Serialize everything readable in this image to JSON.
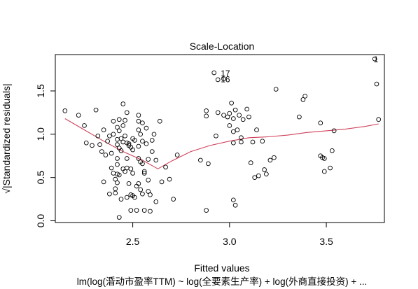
{
  "chart_data": {
    "type": "scatter",
    "title": "Scale-Location",
    "xlabel": "Fitted values",
    "ylabel": "√|Standardized residuals|",
    "subtitle": "lm(log(涽动市盈率TTM) ~ log(全要素生产率) + log(外商直接投资) +  ...",
    "xlim": [
      2.1,
      3.8
    ],
    "ylim": [
      -0.02,
      1.92
    ],
    "x_ticks": [
      2.5,
      3.0,
      3.5
    ],
    "x_tick_labels": [
      "2.5",
      "3.0",
      "3.5"
    ],
    "y_ticks": [
      0.0,
      0.5,
      1.0,
      1.5
    ],
    "y_tick_labels": [
      "0.0",
      "0.5",
      "1.0",
      "1.5"
    ],
    "grid": false,
    "point_color": "#000000",
    "smooth_color": "#d0415a",
    "points": [
      [
        2.15,
        1.27
      ],
      [
        2.22,
        1.22
      ],
      [
        2.25,
        1.1
      ],
      [
        2.26,
        0.9
      ],
      [
        2.29,
        0.87
      ],
      [
        2.31,
        1.28
      ],
      [
        2.32,
        0.98
      ],
      [
        2.33,
        0.88
      ],
      [
        2.34,
        0.8
      ],
      [
        2.35,
        0.45
      ],
      [
        2.35,
        1.05
      ],
      [
        2.36,
        0.76
      ],
      [
        2.37,
        0.92
      ],
      [
        2.38,
        0.98
      ],
      [
        2.38,
        0.31
      ],
      [
        2.39,
        0.78
      ],
      [
        2.39,
        0.61
      ],
      [
        2.4,
        1.15
      ],
      [
        2.4,
        1.0
      ],
      [
        2.4,
        0.55
      ],
      [
        2.41,
        0.48
      ],
      [
        2.41,
        0.37
      ],
      [
        2.41,
        0.32
      ],
      [
        2.42,
        1.08
      ],
      [
        2.42,
        0.94
      ],
      [
        2.42,
        0.88
      ],
      [
        2.42,
        0.72
      ],
      [
        2.42,
        0.65
      ],
      [
        2.42,
        0.54
      ],
      [
        2.42,
        0.44
      ],
      [
        2.43,
        1.17
      ],
      [
        2.43,
        1.04
      ],
      [
        2.43,
        0.84
      ],
      [
        2.43,
        0.53
      ],
      [
        2.43,
        0.04
      ],
      [
        2.44,
        0.95
      ],
      [
        2.44,
        0.81
      ],
      [
        2.44,
        0.25
      ],
      [
        2.45,
        1.35
      ],
      [
        2.45,
        1.1
      ],
      [
        2.45,
        0.91
      ],
      [
        2.45,
        0.6
      ],
      [
        2.46,
        1.16
      ],
      [
        2.46,
        0.98
      ],
      [
        2.46,
        0.57
      ],
      [
        2.47,
        1.25
      ],
      [
        2.47,
        0.9
      ],
      [
        2.47,
        0.72
      ],
      [
        2.47,
        0.61
      ],
      [
        2.47,
        0.27
      ],
      [
        2.48,
        0.89
      ],
      [
        2.48,
        0.87
      ],
      [
        2.48,
        0.43
      ],
      [
        2.49,
        0.85
      ],
      [
        2.49,
        0.6
      ],
      [
        2.49,
        0.3
      ],
      [
        2.49,
        0.12
      ],
      [
        2.5,
        0.95
      ],
      [
        2.5,
        0.82
      ],
      [
        2.5,
        0.55
      ],
      [
        2.5,
        0.29
      ],
      [
        2.51,
        0.93
      ],
      [
        2.51,
        0.27
      ],
      [
        2.52,
        0.12
      ],
      [
        2.52,
        0.4
      ],
      [
        2.53,
        1.22
      ],
      [
        2.53,
        1.15
      ],
      [
        2.53,
        1.05
      ],
      [
        2.53,
        0.86
      ],
      [
        2.53,
        0.72
      ],
      [
        2.53,
        0.43
      ],
      [
        2.54,
        1.0
      ],
      [
        2.54,
        0.68
      ],
      [
        2.54,
        0.36
      ],
      [
        2.55,
        1.13
      ],
      [
        2.55,
        0.92
      ],
      [
        2.55,
        0.66
      ],
      [
        2.55,
        0.31
      ],
      [
        2.56,
        0.57
      ],
      [
        2.56,
        0.55
      ],
      [
        2.56,
        0.12
      ],
      [
        2.57,
        1.07
      ],
      [
        2.57,
        0.89
      ],
      [
        2.58,
        0.71
      ],
      [
        2.58,
        0.47
      ],
      [
        2.58,
        0.34
      ],
      [
        2.59,
        0.3
      ],
      [
        2.59,
        0.11
      ],
      [
        2.6,
        0.93
      ],
      [
        2.6,
        0.8
      ],
      [
        2.61,
        1.0
      ],
      [
        2.62,
        0.7
      ],
      [
        2.62,
        0.22
      ],
      [
        2.64,
        1.15
      ],
      [
        2.65,
        0.45
      ],
      [
        2.67,
        0.62
      ],
      [
        2.69,
        0.48
      ],
      [
        2.71,
        0.25
      ],
      [
        2.73,
        0.76
      ],
      [
        2.85,
        0.7
      ],
      [
        2.88,
        1.27
      ],
      [
        2.88,
        1.21
      ],
      [
        2.89,
        0.66
      ],
      [
        2.88,
        0.12
      ],
      [
        2.92,
        1.71
      ],
      [
        2.94,
        1.63
      ],
      [
        2.93,
        0.98
      ],
      [
        2.94,
        1.25
      ],
      [
        2.97,
        1.64
      ],
      [
        2.97,
        1.22
      ],
      [
        2.99,
        1.2
      ],
      [
        3.0,
        1.24
      ],
      [
        3.0,
        1.1
      ],
      [
        3.01,
        1.36
      ],
      [
        3.02,
        1.18
      ],
      [
        3.02,
        1.03
      ],
      [
        3.02,
        0.9
      ],
      [
        3.02,
        0.24
      ],
      [
        3.03,
        1.28
      ],
      [
        3.03,
        0.18
      ],
      [
        3.04,
        1.05
      ],
      [
        3.05,
        1.22
      ],
      [
        3.06,
        0.96
      ],
      [
        3.06,
        0.91
      ],
      [
        3.07,
        1.17
      ],
      [
        3.09,
        1.29
      ],
      [
        3.1,
        1.2
      ],
      [
        3.11,
        0.67
      ],
      [
        3.12,
        0.91
      ],
      [
        3.13,
        0.5
      ],
      [
        3.14,
        1.05
      ],
      [
        3.15,
        0.52
      ],
      [
        3.17,
        0.92
      ],
      [
        3.18,
        0.59
      ],
      [
        3.19,
        0.54
      ],
      [
        3.21,
        0.7
      ],
      [
        3.23,
        0.73
      ],
      [
        3.24,
        1.52
      ],
      [
        3.36,
        1.2
      ],
      [
        3.38,
        1.4
      ],
      [
        3.39,
        1.44
      ],
      [
        3.47,
        1.13
      ],
      [
        3.47,
        0.75
      ],
      [
        3.48,
        0.73
      ],
      [
        3.49,
        0.72
      ],
      [
        3.49,
        0.57
      ],
      [
        3.52,
        0.61
      ],
      [
        3.53,
        0.81
      ],
      [
        3.54,
        1.04
      ],
      [
        3.75,
        1.87
      ],
      [
        3.76,
        1.58
      ],
      [
        3.77,
        1.17
      ]
    ],
    "point_labels": [
      {
        "text": "17",
        "x": 2.94,
        "y": 1.71
      },
      {
        "text": "16",
        "x": 2.94,
        "y": 1.64
      },
      {
        "text": "1",
        "x": 3.73,
        "y": 1.87
      }
    ],
    "smooth_line": [
      [
        2.15,
        1.18
      ],
      [
        2.25,
        1.05
      ],
      [
        2.35,
        0.92
      ],
      [
        2.45,
        0.8
      ],
      [
        2.55,
        0.7
      ],
      [
        2.63,
        0.6
      ],
      [
        2.7,
        0.69
      ],
      [
        2.8,
        0.8
      ],
      [
        2.9,
        0.87
      ],
      [
        3.0,
        0.92
      ],
      [
        3.1,
        0.96
      ],
      [
        3.2,
        0.97
      ],
      [
        3.3,
        0.99
      ],
      [
        3.4,
        1.02
      ],
      [
        3.5,
        1.04
      ],
      [
        3.6,
        1.06
      ],
      [
        3.7,
        1.09
      ],
      [
        3.77,
        1.12
      ]
    ]
  }
}
